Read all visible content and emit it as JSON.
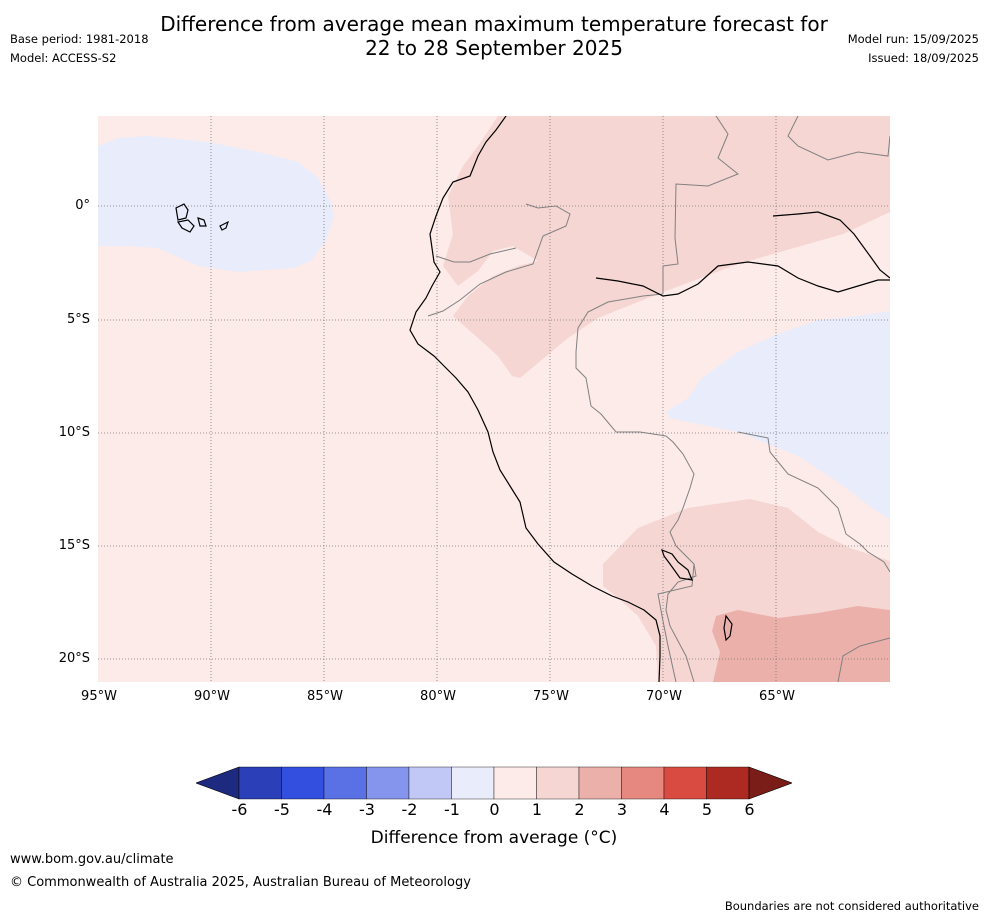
{
  "header": {
    "title_line1": "Difference from average mean maximum temperature forecast for",
    "title_line2": "22 to 28 September 2025",
    "base_period": "Base period: 1981-2018",
    "model": "Model: ACCESS-S2",
    "model_run": "Model run: 15/09/2025",
    "issued": "Issued: 18/09/2025"
  },
  "map": {
    "region": "Western South America and eastern Pacific",
    "lat_labels": [
      "0°",
      "5°S",
      "10°S",
      "15°S",
      "20°S"
    ],
    "lon_labels": [
      "95°W",
      "90°W",
      "85°W",
      "80°W",
      "75°W",
      "70°W",
      "65°W"
    ],
    "shading_colors": {
      "anom_m1_0": "#e8ecfb",
      "anom_0_1": "#fcebe9",
      "anom_1_2": "#f5d6d3",
      "anom_2_3": "#ecb0ab"
    },
    "coast_color": "#000000",
    "border_color": "#808080",
    "grid_color": "#777777"
  },
  "colorbar": {
    "ticks": [
      "-6",
      "-5",
      "-4",
      "-3",
      "-2",
      "-1",
      "0",
      "1",
      "2",
      "3",
      "4",
      "5",
      "6"
    ],
    "colors": [
      "#1d2a80",
      "#2a3fb8",
      "#334fe0",
      "#5a71e6",
      "#8595ee",
      "#c2c8f5",
      "#e8ecfb",
      "#fcebe9",
      "#f5d6d3",
      "#ecb0ab",
      "#e6887f",
      "#d94b40",
      "#ad2a22",
      "#7a1c17"
    ],
    "label": "Difference from average (°C)"
  },
  "footer": {
    "url": "www.bom.gov.au/climate",
    "copyright": "© Commonwealth of Australia 2025, Australian Bureau of Meteorology",
    "disclaimer": "Boundaries are not considered authoritative"
  }
}
